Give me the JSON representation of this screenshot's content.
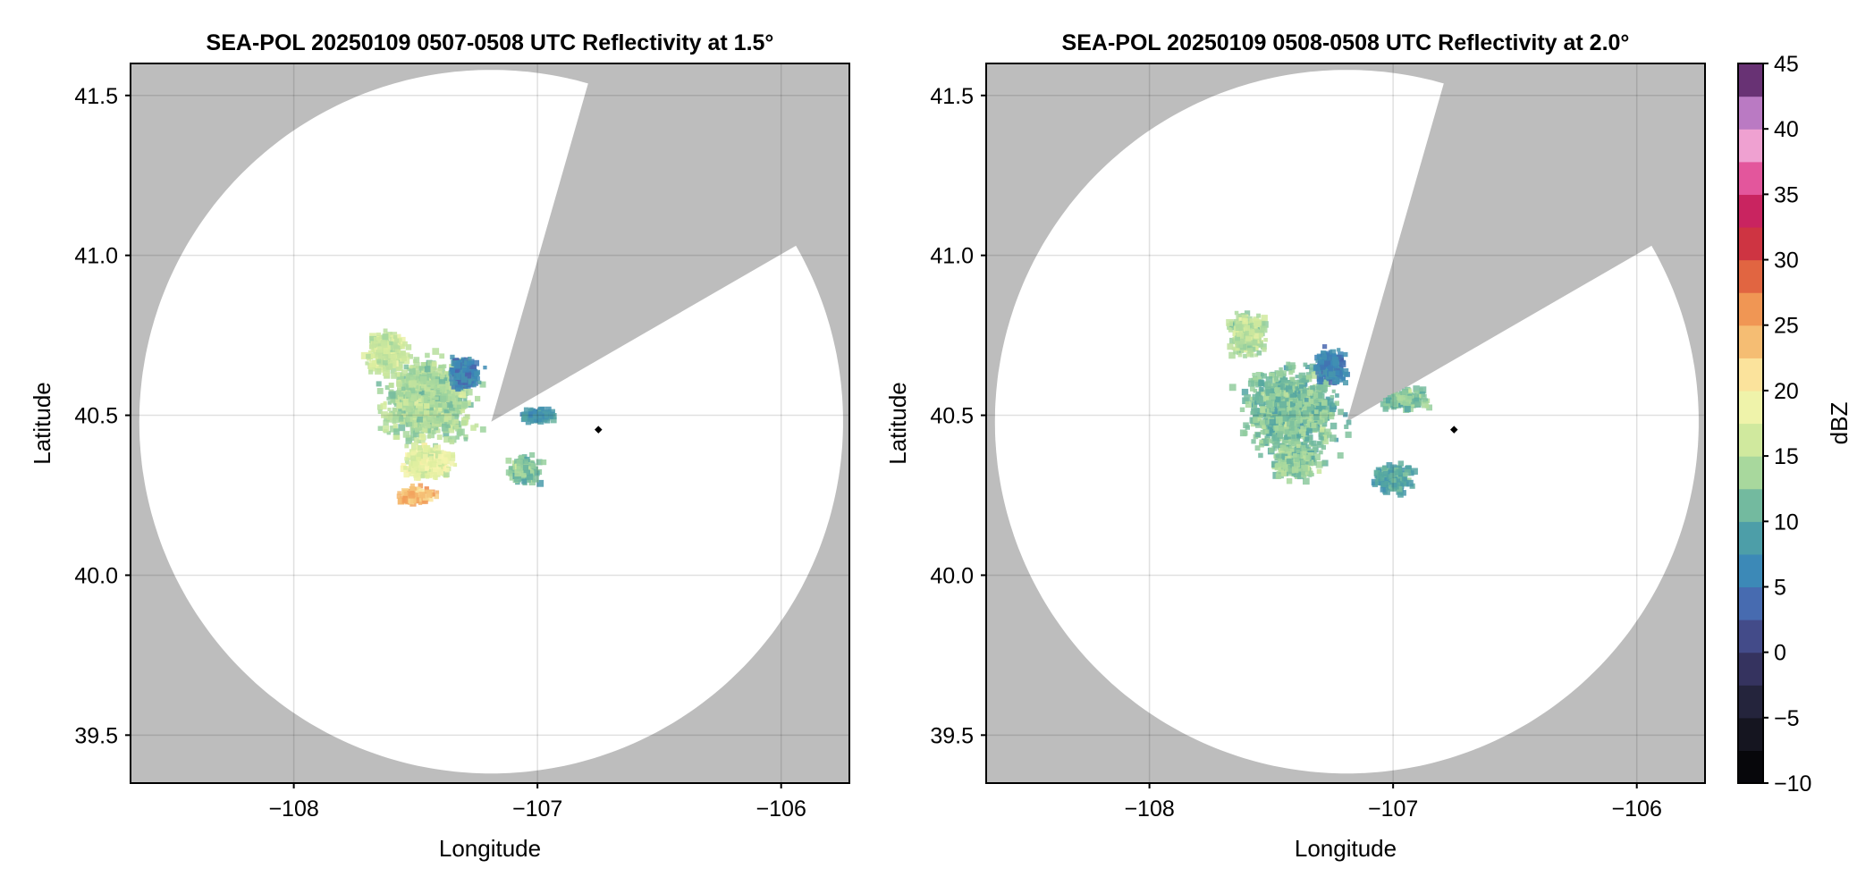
{
  "chart_data": [
    {
      "type": "heatmap",
      "title": "SEA-POL 20250109 0507-0508 UTC Reflectivity at 1.5°",
      "xlabel": "Longitude",
      "ylabel": "Latitude",
      "xlim": [
        -108.67,
        -105.72
      ],
      "ylim": [
        39.35,
        41.6
      ],
      "x_ticks": [
        -108,
        -107,
        -106
      ],
      "x_tick_labels": [
        "−108",
        "−107",
        "−106"
      ],
      "y_ticks": [
        39.5,
        40.0,
        40.5,
        41.0,
        41.5
      ],
      "y_tick_labels": [
        "39.5",
        "40.0",
        "40.5",
        "41.0",
        "41.5"
      ],
      "grid": true,
      "radar_location": [
        -107.19,
        40.48
      ],
      "coverage_radius_deg_lat": 1.1,
      "blocked_sectors_deg_from_north": [
        [
          16,
          60
        ]
      ],
      "marker": {
        "lon": -106.75,
        "lat": 40.455,
        "color": "#000000"
      },
      "echo_regions": [
        {
          "lon": -107.45,
          "lat": 40.55,
          "spread_lon": 0.28,
          "spread_lat": 0.2,
          "dbz": 14
        },
        {
          "lon": -107.62,
          "lat": 40.7,
          "spread_lon": 0.13,
          "spread_lat": 0.1,
          "dbz": 16
        },
        {
          "lon": -107.3,
          "lat": 40.63,
          "spread_lon": 0.1,
          "spread_lat": 0.08,
          "dbz": 6
        },
        {
          "lon": -107.45,
          "lat": 40.35,
          "spread_lon": 0.16,
          "spread_lat": 0.08,
          "dbz": 18
        },
        {
          "lon": -107.5,
          "lat": 40.25,
          "spread_lon": 0.12,
          "spread_lat": 0.04,
          "dbz": 24
        },
        {
          "lon": -107.0,
          "lat": 40.5,
          "spread_lon": 0.12,
          "spread_lat": 0.03,
          "dbz": 8
        },
        {
          "lon": -107.05,
          "lat": 40.33,
          "spread_lon": 0.1,
          "spread_lat": 0.06,
          "dbz": 12
        }
      ]
    },
    {
      "type": "heatmap",
      "title": "SEA-POL 20250109 0508-0508 UTC Reflectivity at 2.0°",
      "xlabel": "Longitude",
      "ylabel": "Latitude",
      "xlim": [
        -108.67,
        -105.72
      ],
      "ylim": [
        39.35,
        41.6
      ],
      "x_ticks": [
        -108,
        -107,
        -106
      ],
      "x_tick_labels": [
        "−108",
        "−107",
        "−106"
      ],
      "y_ticks": [
        39.5,
        40.0,
        40.5,
        41.0,
        41.5
      ],
      "y_tick_labels": [
        "39.5",
        "40.0",
        "40.5",
        "41.0",
        "41.5"
      ],
      "grid": true,
      "radar_location": [
        -107.19,
        40.48
      ],
      "coverage_radius_deg_lat": 1.1,
      "blocked_sectors_deg_from_north": [
        [
          16,
          60
        ]
      ],
      "marker": {
        "lon": -106.75,
        "lat": 40.455,
        "color": "#000000"
      },
      "echo_regions": [
        {
          "lon": -107.42,
          "lat": 40.52,
          "spread_lon": 0.3,
          "spread_lat": 0.2,
          "dbz": 12
        },
        {
          "lon": -107.6,
          "lat": 40.75,
          "spread_lon": 0.12,
          "spread_lat": 0.1,
          "dbz": 15
        },
        {
          "lon": -107.25,
          "lat": 40.65,
          "spread_lon": 0.1,
          "spread_lat": 0.08,
          "dbz": 6
        },
        {
          "lon": -107.4,
          "lat": 40.35,
          "spread_lon": 0.16,
          "spread_lat": 0.08,
          "dbz": 13
        },
        {
          "lon": -106.95,
          "lat": 40.55,
          "spread_lon": 0.15,
          "spread_lat": 0.05,
          "dbz": 12
        },
        {
          "lon": -107.0,
          "lat": 40.3,
          "spread_lon": 0.12,
          "spread_lat": 0.07,
          "dbz": 10
        }
      ]
    }
  ],
  "colorbar": {
    "label": "dBZ",
    "min": -10,
    "max": 45,
    "step": 2.5,
    "ticks": [
      -10,
      -5,
      0,
      5,
      10,
      15,
      20,
      25,
      30,
      35,
      40,
      45
    ],
    "tick_labels": [
      "−10",
      "−5",
      "0",
      "5",
      "10",
      "15",
      "20",
      "25",
      "30",
      "35",
      "40",
      "45"
    ],
    "colormap": [
      {
        "v": -10,
        "c": "#000000"
      },
      {
        "v": -5,
        "c": "#1c1c2a"
      },
      {
        "v": 0,
        "c": "#3d3a70"
      },
      {
        "v": 3,
        "c": "#4b62ad"
      },
      {
        "v": 6,
        "c": "#3a87b8"
      },
      {
        "v": 10,
        "c": "#55a8a0"
      },
      {
        "v": 13,
        "c": "#9cd39d"
      },
      {
        "v": 17,
        "c": "#dcee9e"
      },
      {
        "v": 20,
        "c": "#fdf6b2"
      },
      {
        "v": 23,
        "c": "#f7c97d"
      },
      {
        "v": 27,
        "c": "#ee8a4a"
      },
      {
        "v": 30,
        "c": "#d84a3a"
      },
      {
        "v": 33,
        "c": "#c0164d"
      },
      {
        "v": 36,
        "c": "#e24e97"
      },
      {
        "v": 39,
        "c": "#f0a8d6"
      },
      {
        "v": 42,
        "c": "#a86bbd"
      },
      {
        "v": 45,
        "c": "#3a0a40"
      }
    ]
  },
  "colors": {
    "background": "#bdbdbd",
    "coverage": "#ffffff"
  }
}
